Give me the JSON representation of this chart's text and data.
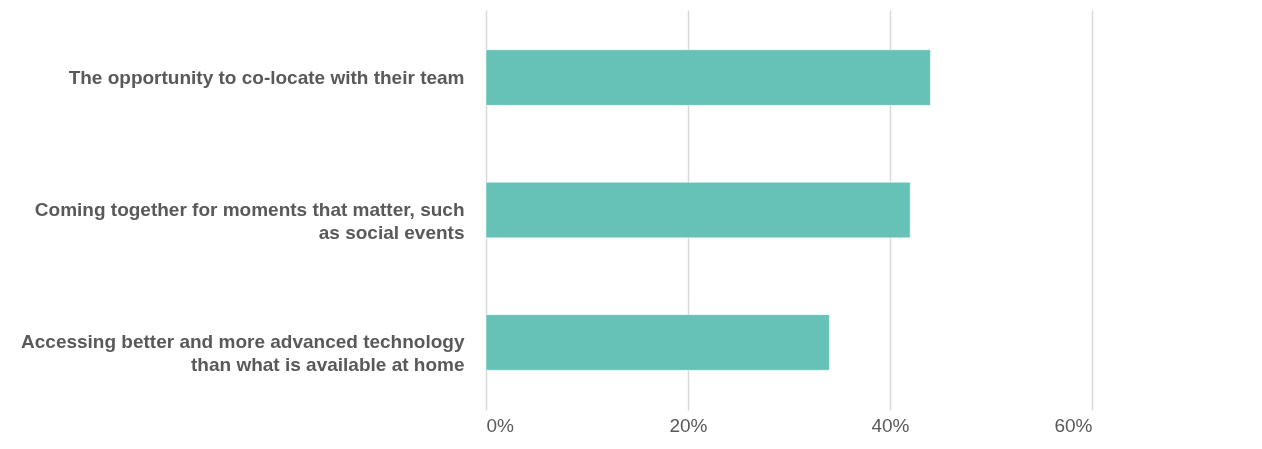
{
  "chart_data": {
    "type": "bar",
    "orientation": "horizontal",
    "categories": [
      "The opportunity to co-locate with their team",
      "Coming together for moments that matter, such as social events",
      "Accessing better and more advanced technology than what is available at home"
    ],
    "values": [
      44,
      42,
      34
    ],
    "color": "#66c1b6",
    "xlim": [
      0,
      60
    ],
    "xticks": [
      {
        "value": 0,
        "label": "0%"
      },
      {
        "value": 20,
        "label": "20%"
      },
      {
        "value": 40,
        "label": "40%"
      },
      {
        "value": 60,
        "label": "60%"
      }
    ],
    "grid": "x"
  }
}
